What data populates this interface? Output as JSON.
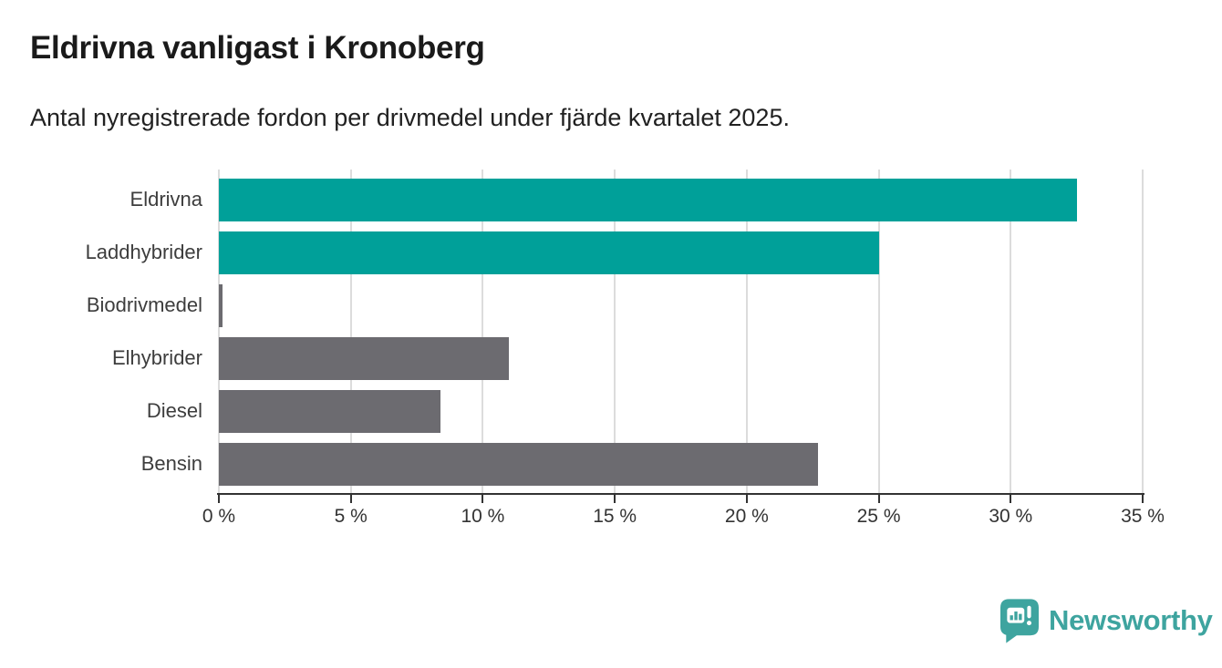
{
  "title": "Eldrivna vanligast i Kronoberg",
  "subtitle": "Antal nyregistrerade fordon per drivmedel under fjärde kvartalet 2025.",
  "branding": {
    "logo_text": "Newsworthy",
    "logo_icon": "newsworthy-pin-barchart-icon"
  },
  "colors": {
    "accent_teal": "#00a099",
    "bar_gray": "#6c6b70",
    "grid_gray": "#dcdcdc",
    "axis_dark": "#333333",
    "logo_teal": "#3ea49f"
  },
  "chart_data": {
    "type": "bar",
    "orientation": "horizontal",
    "title": "Eldrivna vanligast i Kronoberg",
    "subtitle": "Antal nyregistrerade fordon per drivmedel under fjärde kvartalet 2025.",
    "categories": [
      "Eldrivna",
      "Laddhybrider",
      "Biodrivmedel",
      "Elhybrider",
      "Diesel",
      "Bensin"
    ],
    "values": [
      32.5,
      25.0,
      0.15,
      11.0,
      8.4,
      22.7
    ],
    "bar_colors": [
      "#00a099",
      "#00a099",
      "#6c6b70",
      "#6c6b70",
      "#6c6b70",
      "#6c6b70"
    ],
    "xlabel": "",
    "ylabel": "",
    "xlim": [
      0,
      35
    ],
    "x_ticks": [
      0,
      5,
      10,
      15,
      20,
      25,
      30,
      35
    ],
    "x_tick_labels": [
      "0 %",
      "5 %",
      "10 %",
      "15 %",
      "20 %",
      "25 %",
      "30 %",
      "35 %"
    ],
    "grid": "vertical",
    "legend": "none"
  }
}
